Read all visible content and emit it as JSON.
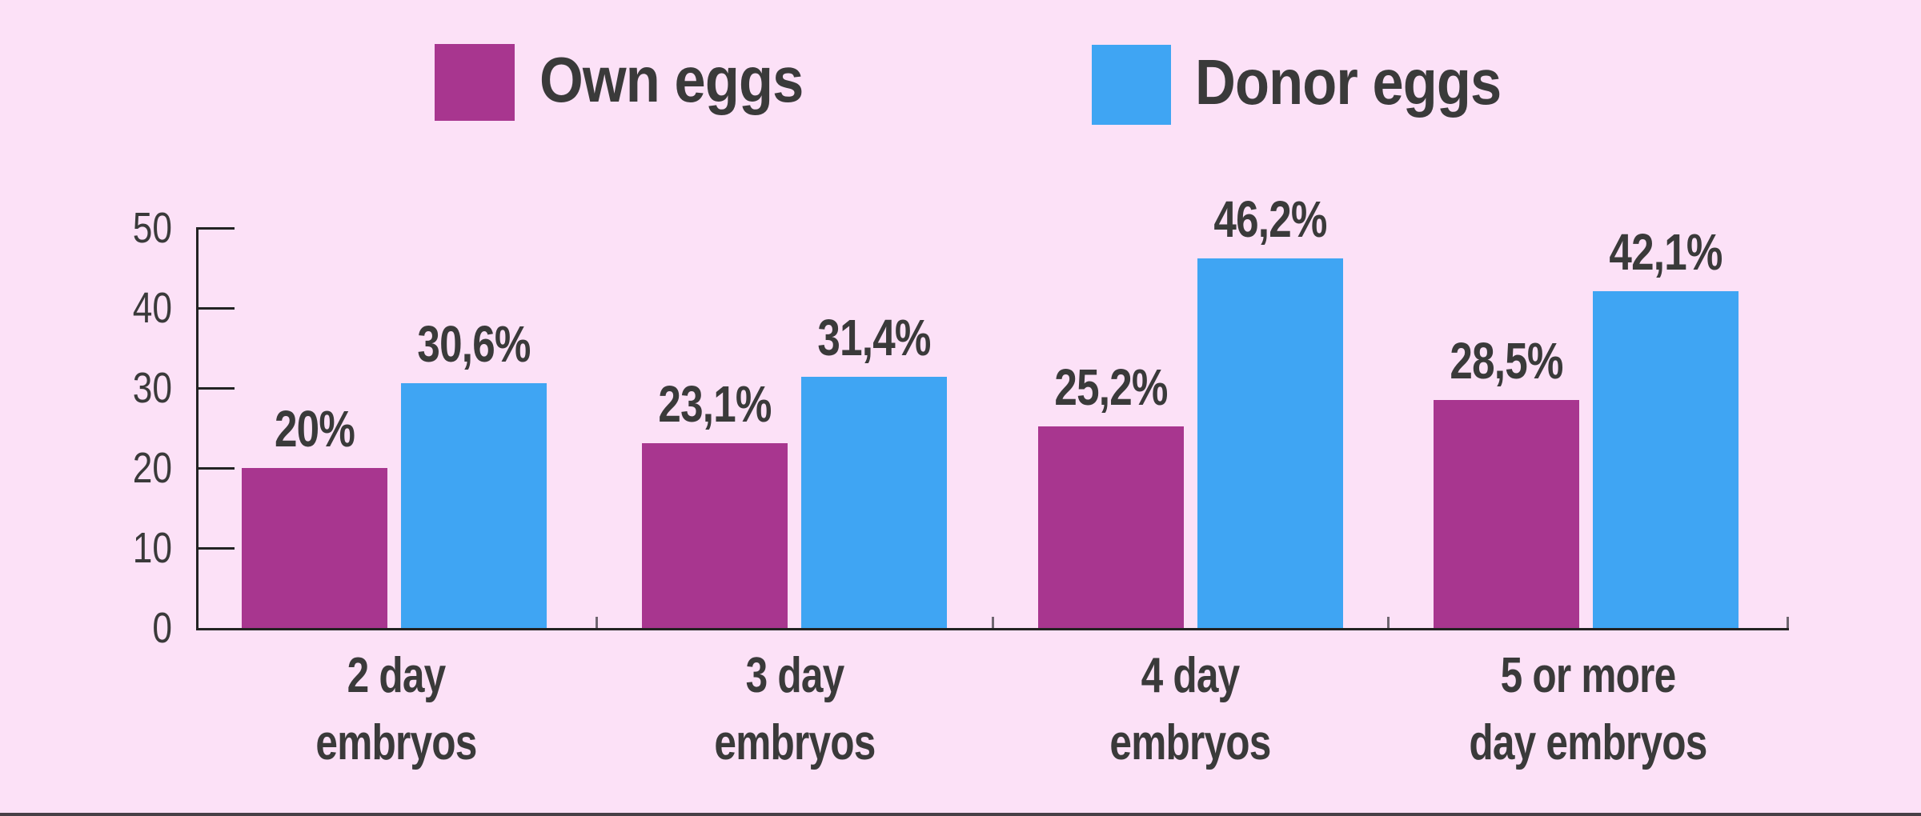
{
  "background_color": "#FCE1F7",
  "bottom_edge_color": "#474046",
  "text_color": "#3A3A3A",
  "axis_color": "#222222",
  "boundary_tick_color": "#6F6670",
  "legend": {
    "items": [
      {
        "label": "Own eggs",
        "color": "#A8368F"
      },
      {
        "label": "Donor eggs",
        "color": "#3FA5F3"
      }
    ]
  },
  "chart_data": {
    "type": "bar",
    "categories": [
      "2 day\nembryos",
      "3 day\nembryos",
      "4 day\nembryos",
      "5 or more\nday embryos"
    ],
    "series": [
      {
        "name": "Own eggs",
        "color": "#A8368F",
        "values": [
          20,
          23.1,
          25.2,
          28.5
        ],
        "labels": [
          "20%",
          "23,1%",
          "25,2%",
          "28,5%"
        ]
      },
      {
        "name": "Donor eggs",
        "color": "#3FA5F3",
        "values": [
          30.6,
          31.4,
          46.2,
          42.1
        ],
        "labels": [
          "30,6%",
          "31,4%",
          "46,2%",
          "42,1%"
        ]
      }
    ],
    "title": "",
    "xlabel": "",
    "ylabel": "",
    "ylim": [
      0,
      50
    ],
    "yticks": [
      0,
      10,
      20,
      30,
      40,
      50
    ],
    "grid": false,
    "legend_position": "top"
  }
}
